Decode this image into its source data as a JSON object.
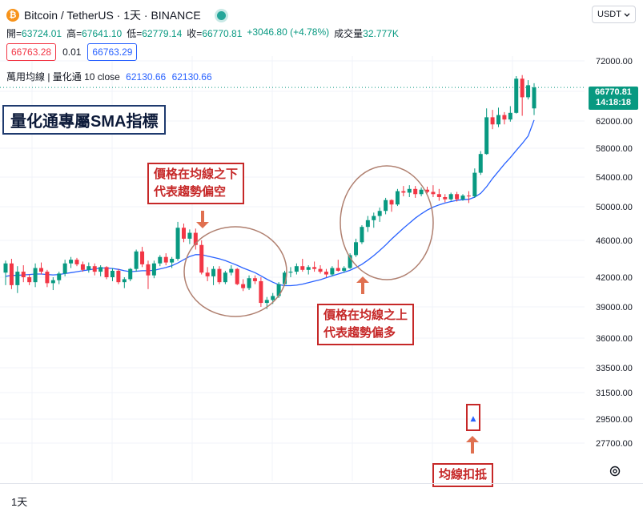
{
  "header": {
    "logo_glyph": "₿",
    "symbol": "Bitcoin / TetherUS · 1天 · BINANCE",
    "ohlc": [
      {
        "label": "開",
        "value": "63724.01"
      },
      {
        "label": "高",
        "value": "67641.10"
      },
      {
        "label": "低",
        "value": "62779.14"
      },
      {
        "label": "收",
        "value": "66770.81"
      }
    ],
    "change": "+3046.80 (+4.78%)",
    "volume_label": "成交量",
    "volume_value": "32.777K"
  },
  "trade": {
    "sell_price": "66763.28",
    "spread": "0.01",
    "buy_price": "66763.29"
  },
  "indicator": {
    "name": "萬用均線 | 量化通 10 close",
    "value1": "62130.66",
    "value2": "62130.66"
  },
  "currency": {
    "label": "USDT",
    "icon": "chevron-down-icon"
  },
  "price_tag": {
    "price": "66770.81",
    "countdown": "14:18:18"
  },
  "footer": {
    "interval": "1天",
    "settings_icon": "gear-icon"
  },
  "annotations": {
    "title": "量化通專屬SMA指標",
    "below_line1": "價格在均線之下",
    "below_line2": "代表趨勢偏空",
    "above_line1": "價格在均線之上",
    "above_line2": "代表趨勢偏多",
    "deduction": "均線扣抵",
    "deduction_marker": "▲"
  },
  "colors": {
    "up": "#089981",
    "down": "#f23645",
    "sma": "#2962ff",
    "annotation": "#c62828",
    "arrow": "#e07050",
    "ellipse": "#b08070"
  },
  "chart_data": {
    "type": "candlestick",
    "y_ticks": [
      72000,
      66000,
      62000,
      58000,
      54000,
      50000,
      46000,
      42000,
      39000,
      36000,
      33500,
      31500,
      29500,
      27700
    ],
    "y_tick_labels": [
      "72000.00",
      "66000.00",
      "62000.00",
      "58000.00",
      "54000.00",
      "50000.00",
      "46000.00",
      "42000.00",
      "39000.00",
      "36000.00",
      "33500.00",
      "31500.00",
      "29500.00",
      "27700.00"
    ],
    "last_price": 66770.81,
    "candles": [
      [
        42500,
        43800,
        41200,
        43500
      ],
      [
        43500,
        44000,
        40800,
        41200
      ],
      [
        41200,
        43200,
        40400,
        42600
      ],
      [
        42600,
        43300,
        41500,
        42000
      ],
      [
        42000,
        42300,
        41200,
        41500
      ],
      [
        41500,
        43500,
        41000,
        43000
      ],
      [
        43000,
        43600,
        42300,
        42600
      ],
      [
        42600,
        42800,
        41000,
        41400
      ],
      [
        41400,
        42000,
        40700,
        41700
      ],
      [
        41700,
        42600,
        41300,
        42400
      ],
      [
        42400,
        43900,
        42100,
        43500
      ],
      [
        43500,
        44200,
        43000,
        43900
      ],
      [
        43900,
        44100,
        43200,
        43400
      ],
      [
        43400,
        43700,
        42600,
        42800
      ],
      [
        42800,
        43600,
        42500,
        43200
      ],
      [
        43200,
        43500,
        42200,
        42600
      ],
      [
        42600,
        43300,
        42100,
        43100
      ],
      [
        43100,
        43200,
        41800,
        42000
      ],
      [
        42000,
        43000,
        41600,
        42700
      ],
      [
        42700,
        42900,
        41300,
        41500
      ],
      [
        41500,
        42000,
        40900,
        41800
      ],
      [
        41800,
        43000,
        41600,
        42900
      ],
      [
        42900,
        45000,
        42600,
        44800
      ],
      [
        44800,
        45300,
        43100,
        43400
      ],
      [
        43400,
        43800,
        40800,
        42200
      ],
      [
        42200,
        43800,
        41900,
        43500
      ],
      [
        43500,
        44400,
        43200,
        44200
      ],
      [
        44200,
        44600,
        43300,
        43600
      ],
      [
        43600,
        44200,
        43000,
        44000
      ],
      [
        44000,
        48200,
        43800,
        47500
      ],
      [
        47500,
        48000,
        45800,
        46200
      ],
      [
        46200,
        47300,
        45600,
        46900
      ],
      [
        46900,
        47400,
        45000,
        45500
      ],
      [
        45500,
        46000,
        42300,
        42500
      ],
      [
        42500,
        43100,
        41600,
        42100
      ],
      [
        42100,
        43200,
        41200,
        42900
      ],
      [
        42900,
        43200,
        41300,
        41500
      ],
      [
        41500,
        42700,
        41300,
        42500
      ],
      [
        42500,
        43300,
        42200,
        42900
      ],
      [
        42900,
        43000,
        41200,
        41300
      ],
      [
        41300,
        41800,
        40600,
        40900
      ],
      [
        40900,
        42200,
        40700,
        41900
      ],
      [
        41900,
        42200,
        41300,
        41600
      ],
      [
        41600,
        42000,
        39000,
        39400
      ],
      [
        39400,
        40000,
        38800,
        39700
      ],
      [
        39700,
        40400,
        39300,
        40100
      ],
      [
        40100,
        41500,
        39900,
        41300
      ],
      [
        41300,
        42700,
        41100,
        42500
      ],
      [
        42500,
        43100,
        42000,
        42600
      ],
      [
        42600,
        43500,
        42300,
        43200
      ],
      [
        43200,
        44000,
        42600,
        42800
      ],
      [
        42800,
        43300,
        42300,
        43100
      ],
      [
        43100,
        43700,
        42600,
        42900
      ],
      [
        42900,
        43300,
        42400,
        42600
      ],
      [
        42600,
        42900,
        42000,
        42300
      ],
      [
        42300,
        43200,
        42100,
        43000
      ],
      [
        43000,
        43900,
        42600,
        42700
      ],
      [
        42700,
        43200,
        42500,
        43000
      ],
      [
        43000,
        44600,
        42900,
        44400
      ],
      [
        44400,
        46200,
        44200,
        45800
      ],
      [
        45800,
        47800,
        45600,
        47600
      ],
      [
        47600,
        48900,
        47000,
        48400
      ],
      [
        48400,
        49300,
        47500,
        48900
      ],
      [
        48900,
        49900,
        48200,
        49500
      ],
      [
        49500,
        51200,
        49100,
        50900
      ],
      [
        50900,
        51000,
        49400,
        50300
      ],
      [
        50300,
        52400,
        50100,
        52100
      ],
      [
        52100,
        52800,
        51400,
        51900
      ],
      [
        51900,
        52900,
        51300,
        52400
      ],
      [
        52400,
        52800,
        51200,
        51700
      ],
      [
        51700,
        52600,
        51400,
        52300
      ],
      [
        52300,
        52700,
        51800,
        52000
      ],
      [
        52000,
        52900,
        51300,
        51700
      ],
      [
        51700,
        52400,
        50800,
        51300
      ],
      [
        51300,
        51700,
        50600,
        51000
      ],
      [
        51000,
        51900,
        50800,
        51700
      ],
      [
        51700,
        52000,
        50700,
        51000
      ],
      [
        51000,
        51700,
        50800,
        51500
      ],
      [
        51500,
        52100,
        50500,
        51400
      ],
      [
        51400,
        55200,
        51200,
        54600
      ],
      [
        54600,
        57600,
        54300,
        57200
      ],
      [
        57200,
        63700,
        57100,
        62500
      ],
      [
        62500,
        63500,
        60800,
        61500
      ],
      [
        61500,
        63800,
        61100,
        62800
      ],
      [
        62800,
        63200,
        61500,
        62200
      ],
      [
        62200,
        64000,
        61900,
        63100
      ],
      [
        63100,
        69000,
        63000,
        68500
      ],
      [
        68500,
        69200,
        62700,
        65200
      ],
      [
        65200,
        68200,
        64900,
        67200
      ],
      [
        63700,
        67600,
        62800,
        66770
      ]
    ],
    "sma": [
      42100,
      42200,
      42200,
      42250,
      42300,
      42350,
      42350,
      42300,
      42250,
      42300,
      42400,
      42500,
      42600,
      42700,
      42800,
      42900,
      43000,
      43000,
      42950,
      42850,
      42700,
      42600,
      42650,
      42700,
      42700,
      42750,
      42900,
      43050,
      43250,
      43550,
      43900,
      44250,
      44450,
      44450,
      44300,
      44150,
      44000,
      43800,
      43550,
      43300,
      43000,
      42750,
      42500,
      42150,
      41800,
      41500,
      41250,
      41150,
      41150,
      41200,
      41300,
      41450,
      41600,
      41750,
      41950,
      42150,
      42350,
      42550,
      42750,
      43050,
      43400,
      43850,
      44350,
      44900,
      45500,
      46150,
      46800,
      47450,
      48050,
      48650,
      49150,
      49600,
      49950,
      50250,
      50500,
      50700,
      50850,
      50950,
      51000,
      51300,
      51800,
      52700,
      53800,
      54800,
      55800,
      56700,
      57700,
      58700,
      59800,
      62131
    ]
  }
}
